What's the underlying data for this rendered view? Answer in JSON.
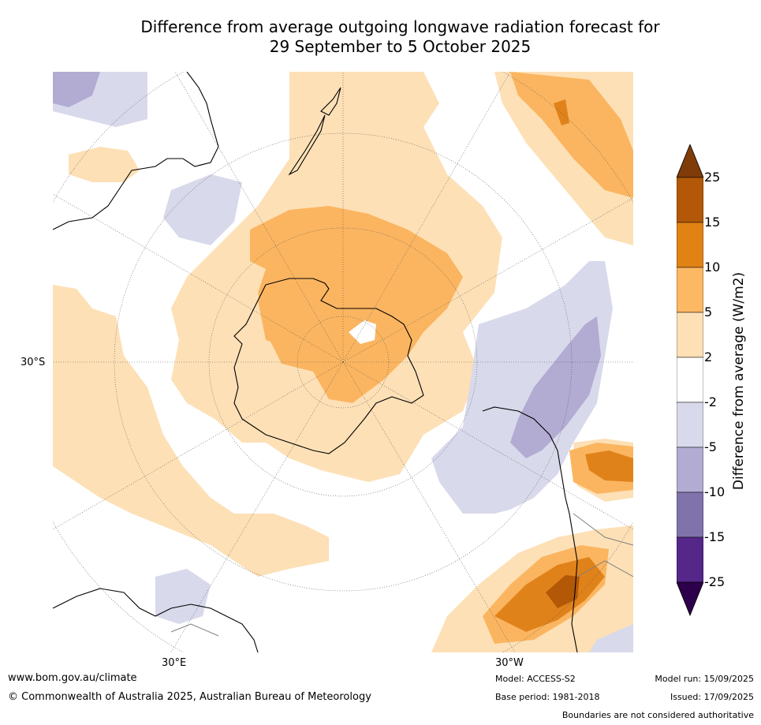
{
  "title": {
    "line1": "Difference from average outgoing longwave radiation forecast for",
    "line2": "29 September to 5 October 2025"
  },
  "map": {
    "projection": "south polar stereographic",
    "lat_labels": [
      "30°S"
    ],
    "lon_labels": [
      "30°E",
      "30°W"
    ],
    "colors": {
      "pos_2_5": "#fde0b6",
      "pos_5_10": "#fbb560",
      "pos_10_15": "#e0821a",
      "pos_15_25": "#b35806",
      "neg_2_5": "#d8d9eb",
      "neg_5_10": "#b2abd2",
      "coast": "#000000",
      "borders": "#808080",
      "grid": "#555555"
    }
  },
  "colorbar": {
    "title": "Difference from average (W/m2)",
    "ticks": [
      "25",
      "15",
      "10",
      "5",
      "2",
      "-2",
      "-5",
      "-10",
      "-15",
      "-25"
    ],
    "colors": [
      "#7f3b08",
      "#b35806",
      "#e08214",
      "#fdb863",
      "#fee0b6",
      "#ffffff",
      "#d8daeb",
      "#b2abd2",
      "#8073ac",
      "#542788",
      "#2d004b"
    ]
  },
  "footer": {
    "website": "www.bom.gov.au/climate",
    "copyright": "© Commonwealth of Australia 2025, Australian Bureau of Meteorology",
    "model": "Model: ACCESS-S2",
    "base_period": "Base period: 1981-2018",
    "model_run": "Model run: 15/09/2025",
    "issued": "Issued: 17/09/2025",
    "disclaimer": "Boundaries are not considered authoritative"
  }
}
